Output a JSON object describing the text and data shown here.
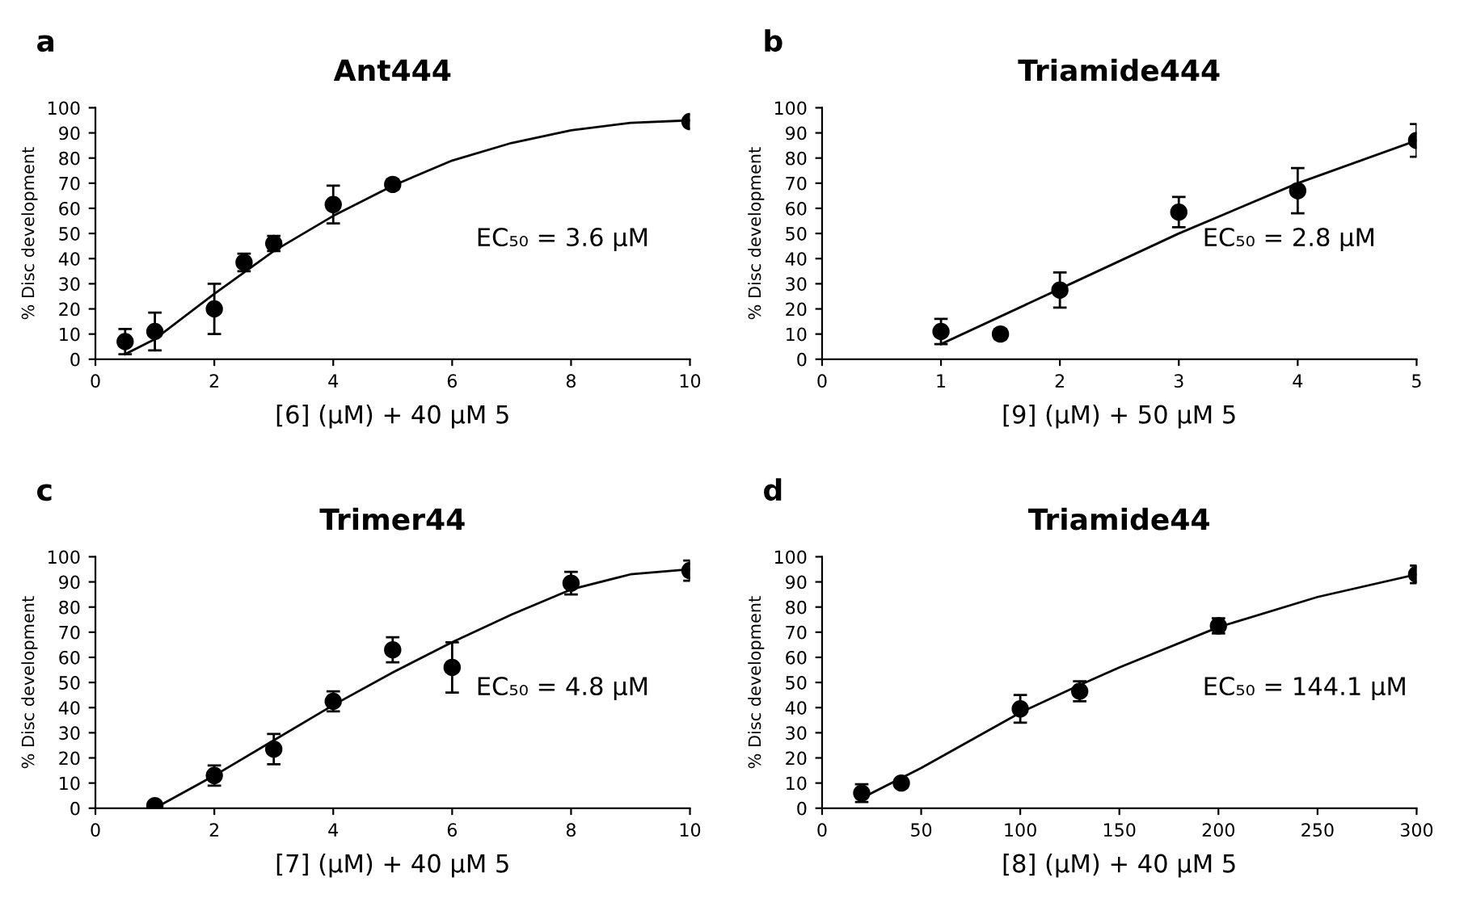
{
  "chart_data": [
    {
      "type": "scatter",
      "title": "Ant444",
      "xlabel": "[6] (μM) + 40 μM 5",
      "ylabel": "% Disc development",
      "annotations": [
        "a",
        "EC₅₀ = 3.6 μM"
      ],
      "xlim": [
        0,
        10
      ],
      "xticks": [
        0,
        2,
        4,
        6,
        8,
        10
      ],
      "ylim": [
        0,
        100
      ],
      "yticks": [
        0,
        10,
        20,
        30,
        40,
        50,
        60,
        70,
        80,
        90,
        100
      ],
      "grid": false,
      "legend": false,
      "series": [
        {
          "color": "#000000",
          "marker": "circle",
          "x": [
            0.5,
            1,
            2,
            2.5,
            3,
            4,
            5,
            10
          ],
          "values": [
            7,
            11,
            20,
            38.5,
            46,
            61.5,
            69.5,
            94.5
          ],
          "errors": [
            5,
            7.5,
            10,
            3.5,
            3,
            7.5,
            2,
            null
          ]
        },
        {
          "type": "line",
          "color": "#000000",
          "marker": "none",
          "line_style": "solid",
          "x": [
            0.5,
            1,
            2,
            3,
            4,
            5,
            6,
            7,
            8,
            9,
            10
          ],
          "values": [
            2,
            8,
            26,
            43,
            57,
            69,
            79,
            86,
            91,
            94,
            95
          ]
        }
      ]
    },
    {
      "type": "scatter",
      "title": "Triamide444",
      "xlabel": "[9] (μM) + 50 μM 5",
      "ylabel": "% Disc development",
      "annotations": [
        "b",
        "EC₅₀ = 2.8 μM"
      ],
      "xlim": [
        0,
        5
      ],
      "xticks": [
        0,
        1,
        2,
        3,
        4,
        5
      ],
      "ylim": [
        0,
        100
      ],
      "yticks": [
        0,
        10,
        20,
        30,
        40,
        50,
        60,
        70,
        80,
        90,
        100
      ],
      "grid": false,
      "legend": false,
      "series": [
        {
          "color": "#000000",
          "marker": "circle",
          "x": [
            1,
            1.5,
            2,
            3,
            4,
            5
          ],
          "values": [
            11,
            10,
            27.5,
            58.5,
            67,
            87
          ],
          "errors": [
            5,
            2,
            7,
            6,
            9,
            6.5
          ]
        },
        {
          "type": "line",
          "color": "#000000",
          "marker": "none",
          "line_style": "solid",
          "x": [
            1,
            2,
            3,
            4,
            5
          ],
          "values": [
            6,
            28,
            50,
            70,
            87
          ]
        }
      ]
    },
    {
      "type": "scatter",
      "title": "Trimer44",
      "xlabel": "[7] (μM) + 40 μM 5",
      "ylabel": "% Disc development",
      "annotations": [
        "c",
        "EC₅₀ = 4.8 μM"
      ],
      "xlim": [
        0,
        10
      ],
      "xticks": [
        0,
        2,
        4,
        6,
        8,
        10
      ],
      "ylim": [
        0,
        100
      ],
      "yticks": [
        0,
        10,
        20,
        30,
        40,
        50,
        60,
        70,
        80,
        90,
        100
      ],
      "grid": false,
      "legend": false,
      "series": [
        {
          "color": "#000000",
          "marker": "circle",
          "x": [
            1,
            2,
            3,
            4,
            5,
            6,
            8,
            10
          ],
          "values": [
            1,
            13,
            23.5,
            42.5,
            63,
            56,
            89.5,
            94.5
          ],
          "errors": [
            null,
            4,
            6,
            4,
            5,
            10,
            4.5,
            4
          ]
        },
        {
          "type": "line",
          "color": "#000000",
          "marker": "none",
          "line_style": "solid",
          "x": [
            1,
            2,
            3,
            4,
            5,
            6,
            7,
            8,
            9,
            10
          ],
          "values": [
            0,
            13,
            27,
            41,
            54,
            66,
            77,
            87,
            93,
            95
          ]
        }
      ]
    },
    {
      "type": "scatter",
      "title": "Triamide44",
      "xlabel": "[8] (μM) + 40 μM 5",
      "ylabel": "% Disc development",
      "annotations": [
        "d",
        "EC₅₀ = 144.1 μM"
      ],
      "xlim": [
        0,
        300
      ],
      "xticks": [
        0,
        50,
        100,
        150,
        200,
        250,
        300
      ],
      "ylim": [
        0,
        100
      ],
      "yticks": [
        0,
        10,
        20,
        30,
        40,
        50,
        60,
        70,
        80,
        90,
        100
      ],
      "grid": false,
      "legend": false,
      "series": [
        {
          "color": "#000000",
          "marker": "circle",
          "x": [
            20,
            40,
            100,
            130,
            200,
            300
          ],
          "values": [
            6,
            10,
            39.5,
            46.5,
            72.5,
            93
          ],
          "errors": [
            3.5,
            1.5,
            5.5,
            4,
            3,
            3.5
          ]
        },
        {
          "type": "line",
          "color": "#000000",
          "marker": "none",
          "line_style": "solid",
          "x": [
            20,
            50,
            100,
            130,
            150,
            200,
            250,
            300
          ],
          "values": [
            4,
            16,
            38,
            49,
            56,
            72,
            84,
            93
          ]
        }
      ]
    }
  ]
}
